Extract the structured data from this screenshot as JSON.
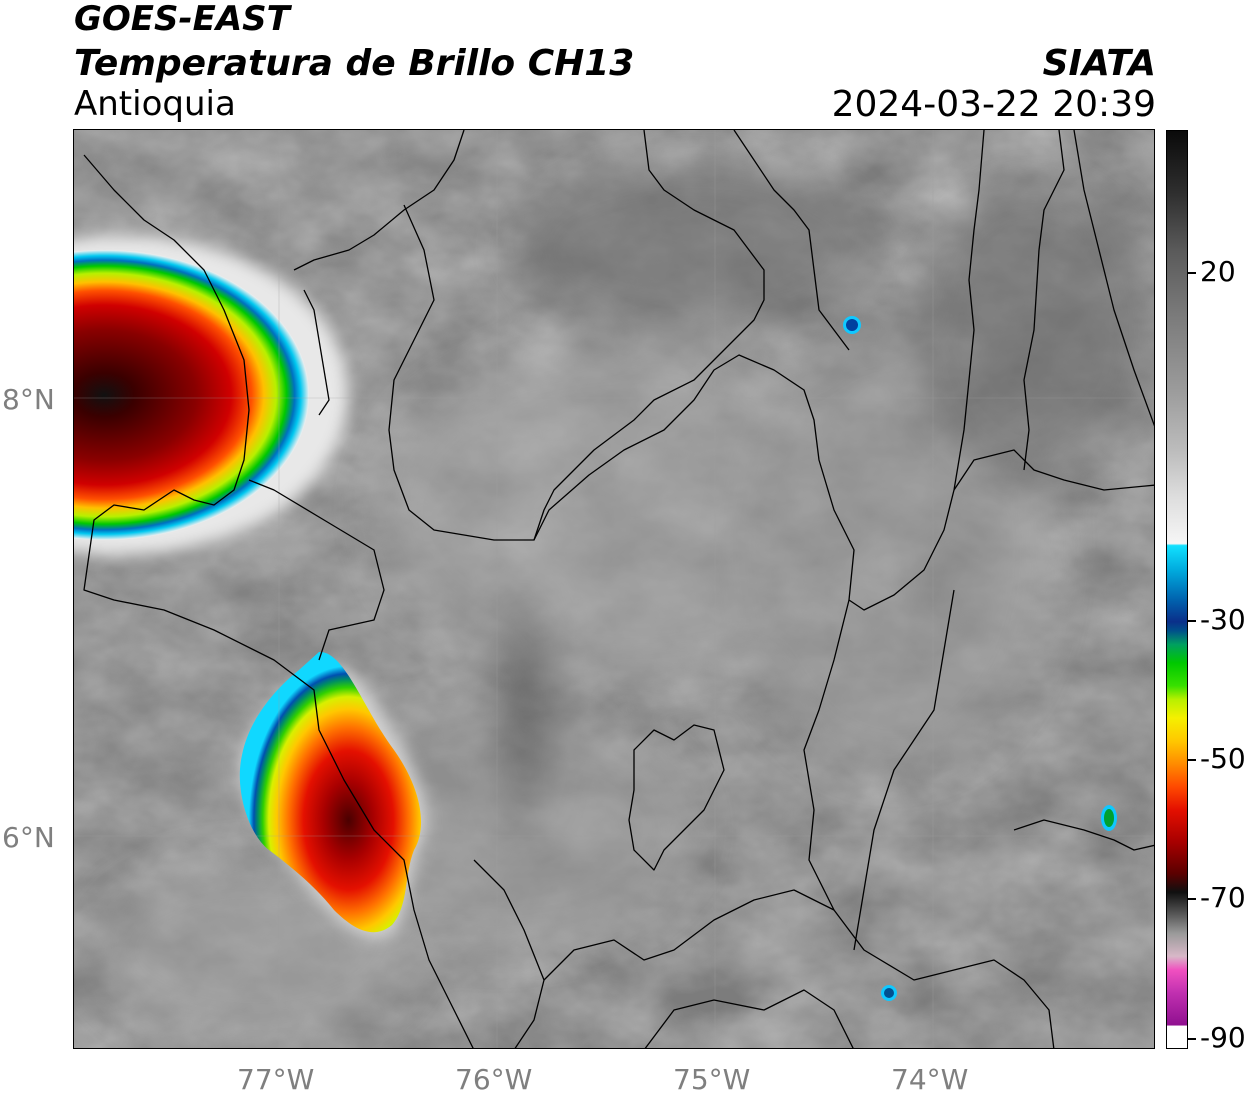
{
  "header": {
    "source": "GOES-EAST",
    "product": "Temperatura de Brillo CH13",
    "region": "Antioquia",
    "organization": "SIATA",
    "timestamp": "2024-03-22 20:39"
  },
  "map": {
    "lat_labels": [
      "8°N",
      "6°N"
    ],
    "lon_labels": [
      "77°W",
      "76°W",
      "75°W",
      "74°W"
    ]
  },
  "colorbar": {
    "tick_labels": [
      "20",
      "-30",
      "-50",
      "-70",
      "-90"
    ],
    "scale_colors": {
      "warm": "#0a0a0a",
      "neutral": "#f6f6f6",
      "cold_blue": "#0a2f8a",
      "cold_green": "#00c800",
      "cold_yellow": "#f5f000",
      "cold_red": "#e41000",
      "coldest_magenta": "#901090"
    }
  }
}
